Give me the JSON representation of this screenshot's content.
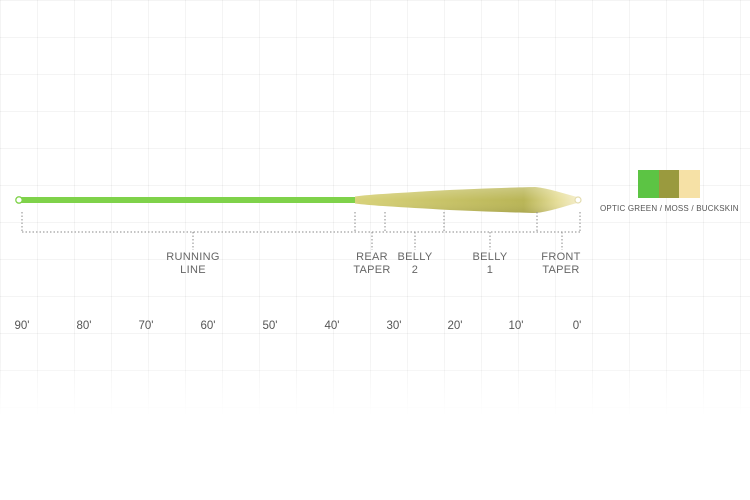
{
  "segments": [
    {
      "key": "running_line",
      "line1": "RUNNING",
      "line2": "LINE"
    },
    {
      "key": "rear_taper",
      "line1": "REAR",
      "line2": "TAPER"
    },
    {
      "key": "belly_2",
      "line1": "BELLY",
      "line2": "2"
    },
    {
      "key": "belly_1",
      "line1": "BELLY",
      "line2": "1"
    },
    {
      "key": "front_taper",
      "line1": "FRONT",
      "line2": "TAPER"
    }
  ],
  "scale_ticks": [
    "90'",
    "80'",
    "70'",
    "60'",
    "50'",
    "40'",
    "30'",
    "20'",
    "10'",
    "0'"
  ],
  "color_option": {
    "label": "OPTIC GREEN / MOSS / BUCKSKIN",
    "swatches": [
      {
        "name": "optic-green",
        "color": "#5cc444"
      },
      {
        "name": "moss",
        "color": "#9a9a3e"
      },
      {
        "name": "buckskin",
        "color": "#f6e1a6"
      }
    ]
  },
  "colors": {
    "running_line": "#7fd24a",
    "head_dark": "#b7b454",
    "head_light": "#e6e08a",
    "tip": "#f4ecc8"
  }
}
